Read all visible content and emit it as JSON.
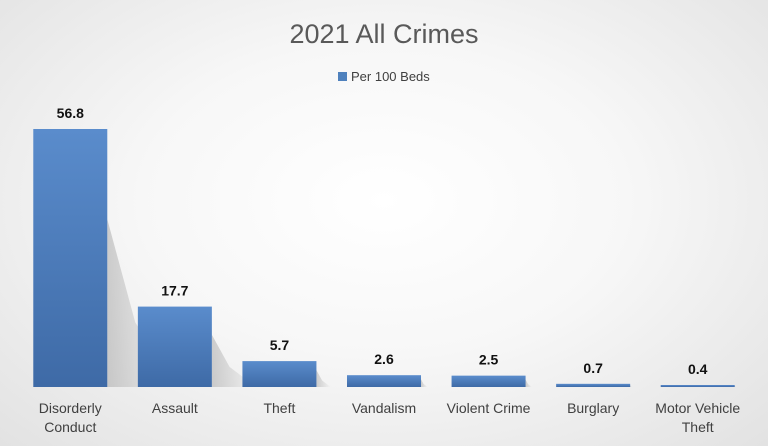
{
  "chart_data": {
    "type": "bar",
    "title": "2021 All Crimes",
    "categories": [
      [
        "Disorderly",
        "Conduct"
      ],
      [
        "Assault"
      ],
      [
        "Theft"
      ],
      [
        "Vandalism"
      ],
      [
        "Violent Crime"
      ],
      [
        "Burglary"
      ],
      [
        "Motor Vehicle",
        "Theft"
      ]
    ],
    "series": [
      {
        "name": "Per 100 Beds",
        "color": "#4f81bd",
        "values": [
          56.8,
          17.7,
          5.7,
          2.6,
          2.5,
          0.7,
          0.4
        ],
        "value_labels": [
          "56.8",
          "17.7",
          "5.7",
          "2.6",
          "2.5",
          "0.7",
          "0.4"
        ]
      }
    ],
    "xlabel": "",
    "ylabel": "",
    "ylim": [
      0,
      56.8
    ],
    "grid": false,
    "legend": "top-center"
  }
}
